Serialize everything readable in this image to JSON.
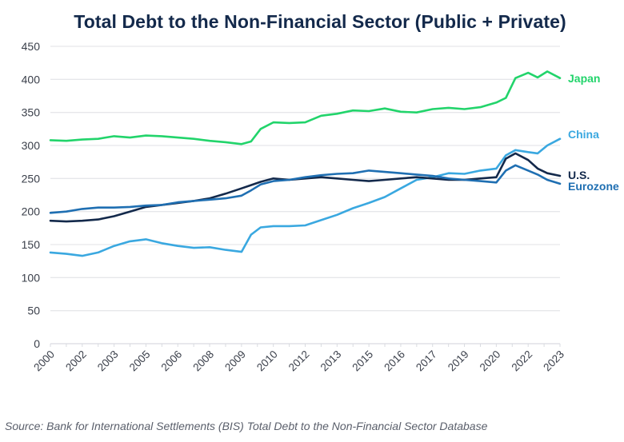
{
  "chart_data": {
    "type": "line",
    "title": "Total Debt to the Non-Financial Sector (Public + Private)",
    "xlabel": "",
    "ylabel": "",
    "ylim": [
      0,
      450
    ],
    "yticks": [
      0,
      50,
      100,
      150,
      200,
      250,
      300,
      350,
      400,
      450
    ],
    "xtick_labels": [
      "2000",
      "2002",
      "2003",
      "2005",
      "2006",
      "2008",
      "2009",
      "2010",
      "2012",
      "2013",
      "2015",
      "2016",
      "2017",
      "2019",
      "2020",
      "2022",
      "2023"
    ],
    "x_positions_note": "x values are positions along the tick sequence (0 = first label 2000, 16 = last label 2023)",
    "grid": true,
    "legend": "inline-right",
    "series": [
      {
        "name": "Japan",
        "color": "#22d46b",
        "x": [
          0,
          0.5,
          1,
          1.5,
          2,
          2.5,
          3,
          3.5,
          4,
          4.5,
          5,
          5.5,
          6,
          6.3,
          6.6,
          7,
          7.5,
          8,
          8.5,
          9,
          9.5,
          10,
          10.5,
          11,
          11.5,
          12,
          12.5,
          13,
          13.5,
          14,
          14.3,
          14.6,
          15,
          15.3,
          15.6,
          16
        ],
        "values": [
          308,
          307,
          309,
          310,
          314,
          312,
          315,
          314,
          312,
          310,
          307,
          305,
          302,
          306,
          325,
          335,
          334,
          335,
          345,
          348,
          353,
          352,
          356,
          351,
          350,
          355,
          357,
          355,
          358,
          365,
          372,
          402,
          410,
          403,
          412,
          402
        ]
      },
      {
        "name": "China",
        "color": "#3aa8e0",
        "x": [
          0,
          0.5,
          1,
          1.5,
          2,
          2.5,
          3,
          3.5,
          4,
          4.5,
          5,
          5.5,
          6,
          6.3,
          6.6,
          7,
          7.5,
          8,
          8.5,
          9,
          9.5,
          10,
          10.5,
          11,
          11.5,
          12,
          12.5,
          13,
          13.5,
          14,
          14.3,
          14.6,
          15,
          15.3,
          15.6,
          16
        ],
        "values": [
          138,
          136,
          133,
          138,
          148,
          155,
          158,
          152,
          148,
          145,
          146,
          142,
          139,
          165,
          176,
          178,
          178,
          179,
          187,
          195,
          205,
          213,
          222,
          235,
          248,
          252,
          258,
          257,
          262,
          265,
          285,
          293,
          290,
          288,
          300,
          310
        ]
      },
      {
        "name": "U.S.",
        "color": "#13294b",
        "x": [
          0,
          0.5,
          1,
          1.5,
          2,
          2.5,
          3,
          3.5,
          4,
          4.5,
          5,
          5.5,
          6,
          6.3,
          6.6,
          7,
          7.5,
          8,
          8.5,
          9,
          9.5,
          10,
          10.5,
          11,
          11.5,
          12,
          12.5,
          13,
          13.5,
          14,
          14.3,
          14.6,
          15,
          15.3,
          15.6,
          16
        ],
        "values": [
          186,
          185,
          186,
          188,
          193,
          200,
          207,
          210,
          213,
          216,
          220,
          227,
          235,
          240,
          245,
          250,
          248,
          250,
          252,
          250,
          248,
          246,
          248,
          250,
          252,
          250,
          248,
          248,
          250,
          252,
          280,
          288,
          278,
          265,
          258,
          254
        ]
      },
      {
        "name": "Eurozone",
        "color": "#1f6fb2",
        "x": [
          0,
          0.5,
          1,
          1.5,
          2,
          2.5,
          3,
          3.5,
          4,
          4.5,
          5,
          5.5,
          6,
          6.3,
          6.6,
          7,
          7.5,
          8,
          8.5,
          9,
          9.5,
          10,
          10.5,
          11,
          11.5,
          12,
          12.5,
          13,
          13.5,
          14,
          14.3,
          14.6,
          15,
          15.3,
          15.6,
          16
        ],
        "values": [
          198,
          200,
          204,
          206,
          206,
          207,
          209,
          210,
          214,
          216,
          218,
          220,
          224,
          232,
          241,
          246,
          248,
          252,
          255,
          257,
          258,
          262,
          260,
          258,
          256,
          254,
          250,
          248,
          246,
          244,
          262,
          270,
          262,
          256,
          248,
          242
        ]
      }
    ]
  },
  "source": "Source: Bank for International Settlements (BIS) Total Debt to the Non-Financial Sector Database"
}
